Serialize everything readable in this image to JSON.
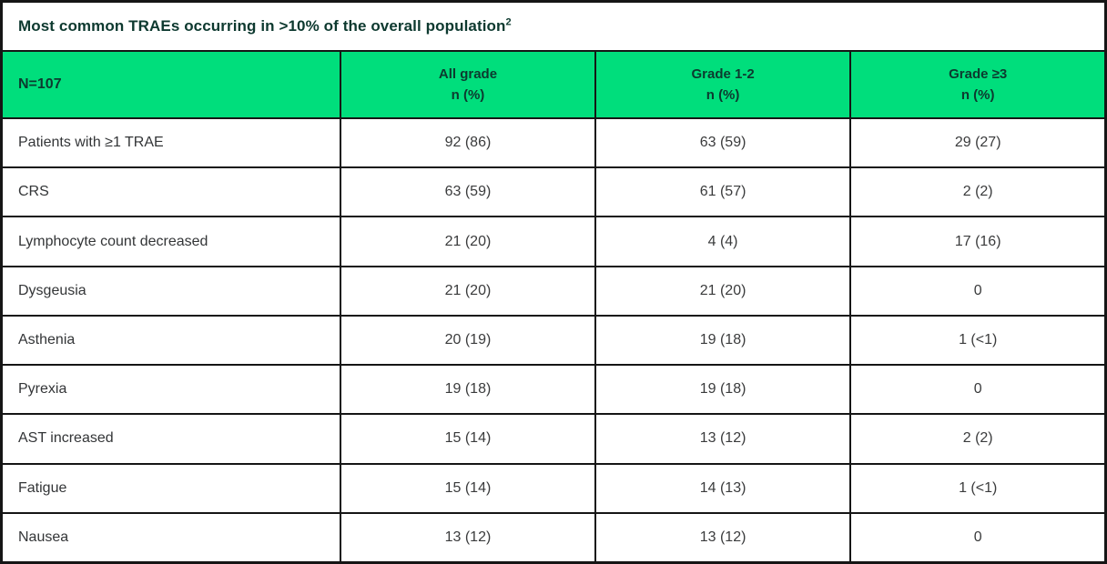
{
  "title": {
    "text": "Most common TRAEs occurring in >10% of the overall population",
    "superscript": "2"
  },
  "colors": {
    "header_green": "#00de7c",
    "title_text": "#0d392f",
    "body_text": "#3a3b3c",
    "border": "#151515",
    "background": "#ffffff"
  },
  "table": {
    "header": {
      "col0": "N=107",
      "col1_line1": "All grade",
      "col1_line2": "n (%)",
      "col2_line1": "Grade 1-2",
      "col2_line2": "n (%)",
      "col3_line1": "Grade ≥3",
      "col3_line2": "n (%)"
    },
    "rows": [
      {
        "label": "Patients with ≥1 TRAE",
        "all_grade": "92 (86)",
        "grade_1_2": "63 (59)",
        "grade_3plus": "29 (27)"
      },
      {
        "label": "CRS",
        "all_grade": "63 (59)",
        "grade_1_2": "61 (57)",
        "grade_3plus": "2 (2)"
      },
      {
        "label": "Lymphocyte count decreased",
        "all_grade": "21 (20)",
        "grade_1_2": "4 (4)",
        "grade_3plus": "17 (16)"
      },
      {
        "label": "Dysgeusia",
        "all_grade": "21 (20)",
        "grade_1_2": "21 (20)",
        "grade_3plus": "0"
      },
      {
        "label": "Asthenia",
        "all_grade": "20 (19)",
        "grade_1_2": "19 (18)",
        "grade_3plus": "1 (<1)"
      },
      {
        "label": "Pyrexia",
        "all_grade": "19 (18)",
        "grade_1_2": "19 (18)",
        "grade_3plus": "0"
      },
      {
        "label": "AST increased",
        "all_grade": "15 (14)",
        "grade_1_2": "13 (12)",
        "grade_3plus": "2 (2)"
      },
      {
        "label": "Fatigue",
        "all_grade": "15 (14)",
        "grade_1_2": "14 (13)",
        "grade_3plus": "1 (<1)"
      },
      {
        "label": "Nausea",
        "all_grade": "13 (12)",
        "grade_1_2": "13 (12)",
        "grade_3plus": "0"
      }
    ]
  },
  "chart_data": {
    "type": "table",
    "title": "Most common TRAEs occurring in >10% of the overall population²",
    "columns": [
      "N=107",
      "All grade n (%)",
      "Grade 1-2 n (%)",
      "Grade ≥3 n (%)"
    ],
    "rows": [
      [
        "Patients with ≥1 TRAE",
        "92 (86)",
        "63 (59)",
        "29 (27)"
      ],
      [
        "CRS",
        "63 (59)",
        "61 (57)",
        "2 (2)"
      ],
      [
        "Lymphocyte count decreased",
        "21 (20)",
        "4 (4)",
        "17 (16)"
      ],
      [
        "Dysgeusia",
        "21 (20)",
        "21 (20)",
        "0"
      ],
      [
        "Asthenia",
        "20 (19)",
        "19 (18)",
        "1 (<1)"
      ],
      [
        "Pyrexia",
        "19 (18)",
        "19 (18)",
        "0"
      ],
      [
        "AST increased",
        "15 (14)",
        "13 (12)",
        "2 (2)"
      ],
      [
        "Fatigue",
        "15 (14)",
        "14 (13)",
        "1 (<1)"
      ],
      [
        "Nausea",
        "13 (12)",
        "13 (12)",
        "0"
      ]
    ]
  }
}
